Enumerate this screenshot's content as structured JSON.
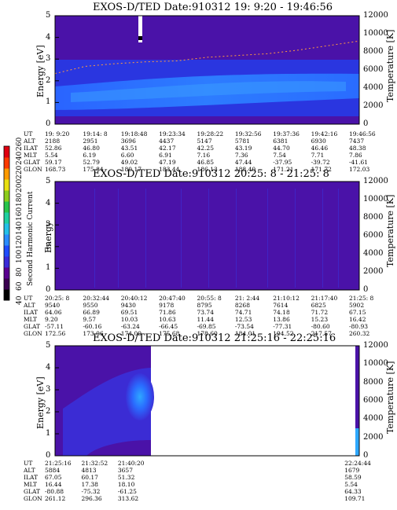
{
  "panels": [
    {
      "title": "EXOS-D/TED   Date:910312  19: 9:20 - 19:46:56",
      "ylabel": "Energy [eV]",
      "y2label": "Temperature [K]",
      "y_ticks": [
        "0",
        "1",
        "2",
        "3",
        "4",
        "5"
      ],
      "y2_ticks": [
        "0",
        "2000",
        "4000",
        "6000",
        "8000",
        "10000",
        "12000"
      ],
      "meta_labels": [
        "UT",
        "ALT",
        "ILAT",
        "MLT",
        "GLAT",
        "GLON"
      ],
      "meta_columns": [
        [
          "19: 9:20",
          "2188",
          "52.86",
          "5.54",
          "59.17",
          "168.73"
        ],
        [
          "19:14: 8",
          "2951",
          "46.80",
          "6.19",
          "52.79",
          "175.84"
        ],
        [
          "19:18:48",
          "3696",
          "43.51",
          "6.60",
          "49.02",
          "180.17"
        ],
        [
          "19:23:34",
          "4437",
          "42.17",
          "6.91",
          "47.19",
          "183.44"
        ],
        [
          "19:28:22",
          "5147",
          "42.25",
          "7.16",
          "46.85",
          "186.13"
        ],
        [
          "19:32:56",
          "5781",
          "43.19",
          "7.36",
          "47.44",
          "188.40"
        ],
        [
          "19:37:36",
          "6381",
          "44.70",
          "7.54",
          "-37.95",
          "171.21"
        ],
        [
          "19:42:16",
          "6930",
          "46.46",
          "7.71",
          "-39.72",
          "171.72"
        ],
        [
          "19:46:56",
          "7437",
          "48.38",
          "7.86",
          "-41.61",
          "172.03"
        ]
      ]
    },
    {
      "title": "EXOS-D/TED   Date:910312  20:25: 8 - 21:25: 8",
      "ylabel": "Energy",
      "y2label": "Temperature [K]",
      "y_ticks": [
        "0",
        "1",
        "2",
        "3",
        "4",
        "5"
      ],
      "y2_ticks": [
        "0",
        "2000",
        "4000",
        "6000",
        "8000",
        "10000",
        "12000"
      ],
      "meta_labels": [
        "UT",
        "ALT",
        "ILAT",
        "MLT",
        "GLAT",
        "GLON"
      ],
      "meta_columns": [
        [
          "20:25: 8",
          "9540",
          "64.06",
          "9.20",
          "-57.11",
          "172.56"
        ],
        [
          "20:32:44",
          "9550",
          "66.89",
          "9.57",
          "-60.16",
          "173.06"
        ],
        [
          "20:40:12",
          "9430",
          "69.51",
          "10.03",
          "-63.24",
          "174.00"
        ],
        [
          "20:47:40",
          "9178",
          "71.86",
          "10.63",
          "-66.45",
          "175.68"
        ],
        [
          "20:55: 8",
          "8795",
          "73.74",
          "11.44",
          "-69.85",
          "178.60"
        ],
        [
          "21: 2:44",
          "8268",
          "74.71",
          "12.53",
          "-73.54",
          "184.01"
        ],
        [
          "21:10:12",
          "7614",
          "74.18",
          "13.86",
          "-77.31",
          "194.52"
        ],
        [
          "21:17:40",
          "6825",
          "71.72",
          "15.23",
          "-80.60",
          "217.57"
        ],
        [
          "21:25: 8",
          "5902",
          "67.15",
          "16.42",
          "-80.93",
          "260.32"
        ]
      ]
    },
    {
      "title": "EXOS-D/TED   Date:910312  21:25:16 - 22:25:16",
      "ylabel": "Energy [eV]",
      "y2label": "Temperature [K]",
      "y_ticks": [
        "0",
        "1",
        "2",
        "3",
        "4",
        "5"
      ],
      "y2_ticks": [
        "0",
        "2000",
        "4000",
        "6000",
        "8000",
        "10000",
        "12000"
      ],
      "meta_labels": [
        "UT",
        "ALT",
        "ILAT",
        "MLT",
        "GLAT",
        "GLON"
      ],
      "meta_columns": [
        [
          "21:25:16",
          "5884",
          "67.05",
          "16.44",
          "-80.88",
          "261.12"
        ],
        [
          "21:32:52",
          "4813",
          "60.17",
          "17.38",
          "-75.32",
          "296.36"
        ],
        [
          "21:40:20",
          "3657",
          "51.32",
          "18.10",
          "-61.25",
          "313.62"
        ],
        [
          "22:24:44",
          "1679",
          "58.59",
          "5.54",
          "64.33",
          "109.71"
        ]
      ]
    }
  ],
  "colorbar": {
    "label": "Second Harmonic Current",
    "ticks": [
      "40",
      "60",
      "80",
      "100",
      "120",
      "140",
      "160",
      "180",
      "200",
      "220",
      "240",
      "260"
    ],
    "colors": [
      "#000000",
      "#3a0050",
      "#5a0090",
      "#3a2ad8",
      "#1f4cff",
      "#2a8cff",
      "#23c0e8",
      "#1fd0a0",
      "#27c44a",
      "#8ccd1c",
      "#e8e010",
      "#ff9a00",
      "#ff3a00",
      "#e00010"
    ]
  },
  "chart_data": [
    {
      "type": "heatmap",
      "title": "EXOS-D/TED   Date:910312  19: 9:20 - 19:46:56",
      "ylabel": "Energy [eV]",
      "y2label": "Temperature [K]",
      "ylim": [
        0,
        5
      ],
      "y2lim": [
        0,
        12000
      ],
      "x_ticks": [
        "19: 9:20",
        "19:14: 8",
        "19:18:48",
        "19:23:34",
        "19:28:22",
        "19:32:56",
        "19:37:36",
        "19:42:16",
        "19:46:56"
      ],
      "temperature_series": {
        "x_fraction": [
          0,
          0.1,
          0.2,
          0.3,
          0.4,
          0.5,
          0.6,
          0.7,
          0.8,
          0.9,
          1.0
        ],
        "y": [
          5600,
          6400,
          6700,
          6900,
          7000,
          7400,
          7600,
          7800,
          8200,
          8700,
          9200
        ]
      },
      "coverage": [
        0,
        1
      ]
    },
    {
      "type": "heatmap",
      "title": "EXOS-D/TED   Date:910312  20:25: 8 - 21:25: 8",
      "ylabel": "Energy",
      "y2label": "Temperature [K]",
      "ylim": [
        0,
        5
      ],
      "y2lim": [
        0,
        12000
      ],
      "x_ticks": [
        "20:25: 8",
        "20:32:44",
        "20:40:12",
        "20:47:40",
        "20:55: 8",
        "21: 2:44",
        "21:10:12",
        "21:17:40",
        "21:25: 8"
      ],
      "coverage": [
        0,
        1
      ]
    },
    {
      "type": "heatmap",
      "title": "EXOS-D/TED   Date:910312  21:25:16 - 22:25:16",
      "ylabel": "Energy [eV]",
      "y2label": "Temperature [K]",
      "ylim": [
        0,
        5
      ],
      "y2lim": [
        0,
        12000
      ],
      "x_ticks": [
        "21:25:16",
        "21:32:52",
        "21:40:20",
        "22:24:44"
      ],
      "coverage": [
        0,
        0.35
      ]
    }
  ]
}
